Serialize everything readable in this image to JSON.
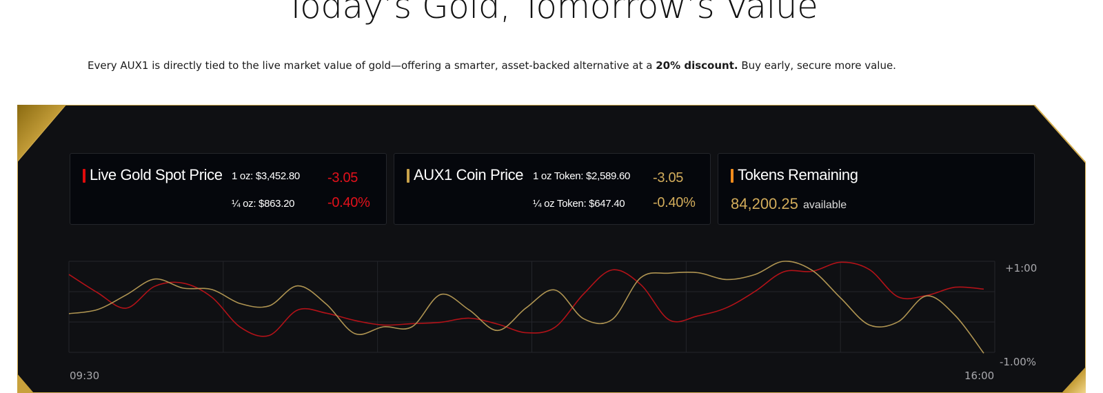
{
  "hero": {
    "headline": "Today’s Gold, Tomorrow’s Value",
    "intro_before": "Every AUX1 is directly tied to the live market value of gold—offering a smarter, asset-backed alternative at a ",
    "intro_bold": "20% discount.",
    "intro_after": " Buy early, secure more value."
  },
  "cards": {
    "gold_spot": {
      "title": "Live Gold Spot Price",
      "row1_label": "1 oz: $3,452.80",
      "row1_change": "-3.05",
      "row2_label": "¼ oz: $863.20",
      "row2_change": "-0.40%"
    },
    "aux1": {
      "title": "AUX1 Coin Price",
      "row1_label": "1 oz Token: $2,589.60",
      "row1_change": "-3.05",
      "row2_label": "¼ oz Token: $647.40",
      "row2_change": "-0.40%"
    },
    "tokens": {
      "title": "Tokens Remaining",
      "value": "84,200.25",
      "suffix": "available"
    }
  },
  "chart_data": {
    "type": "line",
    "x_start_label": "09:30",
    "x_end_label": "16:00",
    "y_top_label": "+1:00",
    "y_bottom_label": "-1.00%",
    "ylim": [
      -1,
      1
    ],
    "grid": true,
    "colors": {
      "red": "#b31218",
      "gold": "#b09552"
    },
    "series": [
      {
        "color": "red",
        "values": [
          0.71,
          0.31,
          -0.03,
          0.45,
          0.52,
          0.21,
          -0.45,
          -0.63,
          -0.07,
          -0.14,
          -0.3,
          -0.4,
          -0.37,
          -0.34,
          -0.25,
          -0.38,
          -0.57,
          -0.45,
          0.28,
          0.81,
          0.49,
          -0.29,
          -0.2,
          -0.02,
          0.34,
          0.77,
          0.78,
          0.98,
          0.82,
          0.22,
          0.25,
          0.43,
          0.39
        ]
      },
      {
        "color": "gold",
        "values": [
          -0.15,
          -0.06,
          0.26,
          0.61,
          0.41,
          0.38,
          0.07,
          0.02,
          0.46,
          0.06,
          -0.59,
          -0.44,
          -0.44,
          0.27,
          -0.07,
          -0.52,
          -0.02,
          0.37,
          -0.26,
          -0.28,
          0.64,
          0.74,
          0.75,
          0.6,
          0.71,
          1.0,
          0.8,
          0.19,
          -0.4,
          -0.33,
          0.24,
          -0.19,
          -1.02
        ]
      }
    ]
  }
}
